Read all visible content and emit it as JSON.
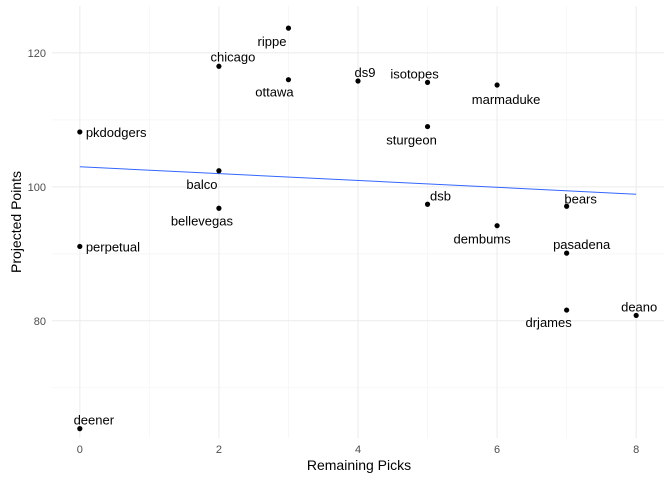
{
  "chart_data": {
    "type": "scatter",
    "title": "",
    "xlabel": "Remaining Picks",
    "ylabel": "Projected Points",
    "xlim": [
      -0.4,
      8.4
    ],
    "ylim": [
      62.5,
      127
    ],
    "x_ticks": [
      0,
      2,
      4,
      6,
      8
    ],
    "y_ticks": [
      80,
      100,
      120
    ],
    "grid": true,
    "point_color": "#000000",
    "trend_color": "#3366ff",
    "trend_line": {
      "x": [
        0,
        8
      ],
      "y": [
        103.0,
        98.9
      ]
    },
    "points": [
      {
        "label": "rippe",
        "x": 3,
        "y": 123.7
      },
      {
        "label": "chicago",
        "x": 2,
        "y": 118.0
      },
      {
        "label": "ottawa",
        "x": 3,
        "y": 116.0
      },
      {
        "label": "ds9",
        "x": 4,
        "y": 115.8
      },
      {
        "label": "isotopes",
        "x": 5,
        "y": 115.6
      },
      {
        "label": "marmaduke",
        "x": 6,
        "y": 115.2
      },
      {
        "label": "sturgeon",
        "x": 5,
        "y": 109.0
      },
      {
        "label": "pkdodgers",
        "x": 0,
        "y": 108.2
      },
      {
        "label": "balco",
        "x": 2,
        "y": 102.4
      },
      {
        "label": "dsb",
        "x": 5,
        "y": 97.4
      },
      {
        "label": "bears",
        "x": 7,
        "y": 97.1
      },
      {
        "label": "bellevegas",
        "x": 2,
        "y": 96.8
      },
      {
        "label": "dembums",
        "x": 6,
        "y": 94.2
      },
      {
        "label": "perpetual",
        "x": 0,
        "y": 91.1
      },
      {
        "label": "pasadena",
        "x": 7,
        "y": 90.1
      },
      {
        "label": "drjames",
        "x": 7,
        "y": 81.6
      },
      {
        "label": "deano",
        "x": 8,
        "y": 80.8
      },
      {
        "label": "deener",
        "x": 0,
        "y": 63.9
      }
    ]
  }
}
